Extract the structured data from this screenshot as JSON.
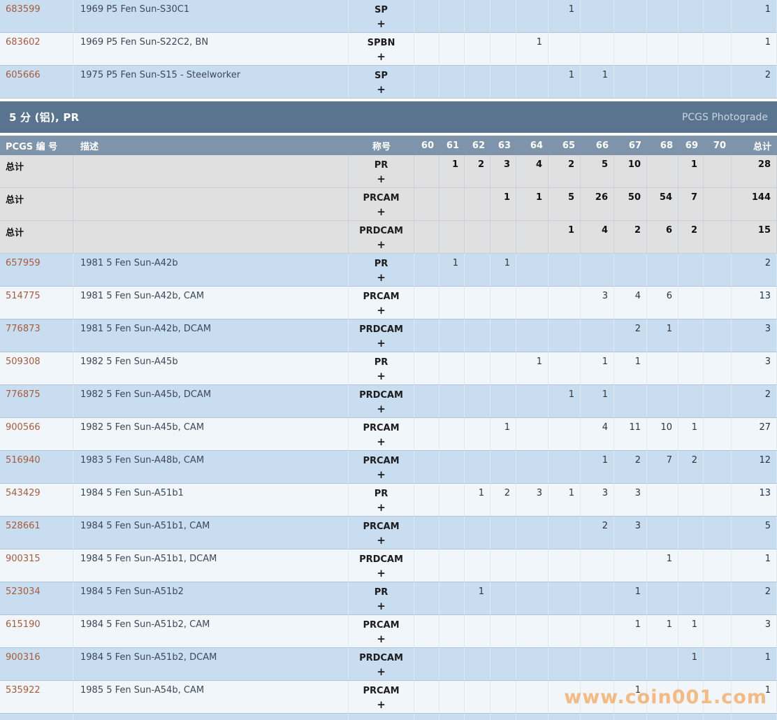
{
  "columns": {
    "pcgs_number": "PCGS 编 号",
    "description": "描述",
    "designation": "称号",
    "grades": [
      "60",
      "61",
      "62",
      "63",
      "64",
      "65",
      "66",
      "67",
      "68",
      "69",
      "70"
    ],
    "total": "总计"
  },
  "plus_label": "+",
  "top_table_rows": [
    {
      "pcgs": "683599",
      "desc": "1969 P5 Fen Sun-S30C1",
      "designation": "SP",
      "grades": {
        "65": "1"
      },
      "total": "1"
    },
    {
      "pcgs": "683602",
      "desc": "1969 P5 Fen Sun-S22C2, BN",
      "designation": "SPBN",
      "grades": {
        "64": "1"
      },
      "total": "1"
    },
    {
      "pcgs": "605666",
      "desc": "1975 P5 Fen Sun-S15 - Steelworker",
      "designation": "SP",
      "grades": {
        "65": "1",
        "66": "1"
      },
      "total": "2"
    }
  ],
  "section": {
    "title": "5 分 (铝), PR",
    "right_label": "PCGS Photograde"
  },
  "total_rows": [
    {
      "label": "总计",
      "designation": "PR",
      "grades": {
        "61": "1",
        "62": "2",
        "63": "3",
        "64": "4",
        "65": "2",
        "66": "5",
        "67": "10",
        "69": "1"
      },
      "total": "28"
    },
    {
      "label": "总计",
      "designation": "PRCAM",
      "grades": {
        "63": "1",
        "64": "1",
        "65": "5",
        "66": "26",
        "67": "50",
        "68": "54",
        "69": "7"
      },
      "total": "144"
    },
    {
      "label": "总计",
      "designation": "PRDCAM",
      "grades": {
        "65": "1",
        "66": "4",
        "67": "2",
        "68": "6",
        "69": "2"
      },
      "total": "15"
    }
  ],
  "rows": [
    {
      "pcgs": "657959",
      "desc": "1981 5 Fen Sun-A42b",
      "designation": "PR",
      "grades": {
        "61": "1",
        "63": "1"
      },
      "total": "2"
    },
    {
      "pcgs": "514775",
      "desc": "1981 5 Fen Sun-A42b, CAM",
      "designation": "PRCAM",
      "grades": {
        "66": "3",
        "67": "4",
        "68": "6"
      },
      "total": "13"
    },
    {
      "pcgs": "776873",
      "desc": "1981 5 Fen Sun-A42b, DCAM",
      "designation": "PRDCAM",
      "grades": {
        "67": "2",
        "68": "1"
      },
      "total": "3"
    },
    {
      "pcgs": "509308",
      "desc": "1982 5 Fen Sun-A45b",
      "designation": "PR",
      "grades": {
        "64": "1",
        "66": "1",
        "67": "1"
      },
      "total": "3"
    },
    {
      "pcgs": "776875",
      "desc": "1982 5 Fen Sun-A45b, DCAM",
      "designation": "PRDCAM",
      "grades": {
        "65": "1",
        "66": "1"
      },
      "total": "2"
    },
    {
      "pcgs": "900566",
      "desc": "1982 5 Fen Sun-A45b, CAM",
      "designation": "PRCAM",
      "grades": {
        "63": "1",
        "66": "4",
        "67": "11",
        "68": "10",
        "69": "1"
      },
      "total": "27"
    },
    {
      "pcgs": "516940",
      "desc": "1983 5 Fen Sun-A48b, CAM",
      "designation": "PRCAM",
      "grades": {
        "66": "1",
        "67": "2",
        "68": "7",
        "69": "2"
      },
      "total": "12"
    },
    {
      "pcgs": "543429",
      "desc": "1984 5 Fen Sun-A51b1",
      "designation": "PR",
      "grades": {
        "62": "1",
        "63": "2",
        "64": "3",
        "65": "1",
        "66": "3",
        "67": "3"
      },
      "total": "13"
    },
    {
      "pcgs": "528661",
      "desc": "1984 5 Fen Sun-A51b1, CAM",
      "designation": "PRCAM",
      "grades": {
        "66": "2",
        "67": "3"
      },
      "total": "5"
    },
    {
      "pcgs": "900315",
      "desc": "1984 5 Fen Sun-A51b1, DCAM",
      "designation": "PRDCAM",
      "grades": {
        "68": "1"
      },
      "total": "1"
    },
    {
      "pcgs": "523034",
      "desc": "1984 5 Fen Sun-A51b2",
      "designation": "PR",
      "grades": {
        "62": "1",
        "67": "1"
      },
      "total": "2"
    },
    {
      "pcgs": "615190",
      "desc": "1984 5 Fen Sun-A51b2, CAM",
      "designation": "PRCAM",
      "grades": {
        "67": "1",
        "68": "1",
        "69": "1"
      },
      "total": "3"
    },
    {
      "pcgs": "900316",
      "desc": "1984 5 Fen Sun-A51b2, DCAM",
      "designation": "PRDCAM",
      "grades": {
        "69": "1"
      },
      "total": "1"
    },
    {
      "pcgs": "535922",
      "desc": "1985 5 Fen Sun-A54b, CAM",
      "designation": "PRCAM",
      "grades": {
        "67": "1"
      },
      "total": "1"
    }
  ],
  "watermark": "www.coin001.com",
  "colors": {
    "section_header_bg": "#5a7490",
    "column_header_bg": "#7d94ab",
    "row_blue": "#c9ddf0",
    "row_pale": "#f1f6fb",
    "row_total_grey": "#e0e0e0",
    "pcgs_number_link": "#a85b39",
    "watermark_orange": "#f79433"
  }
}
